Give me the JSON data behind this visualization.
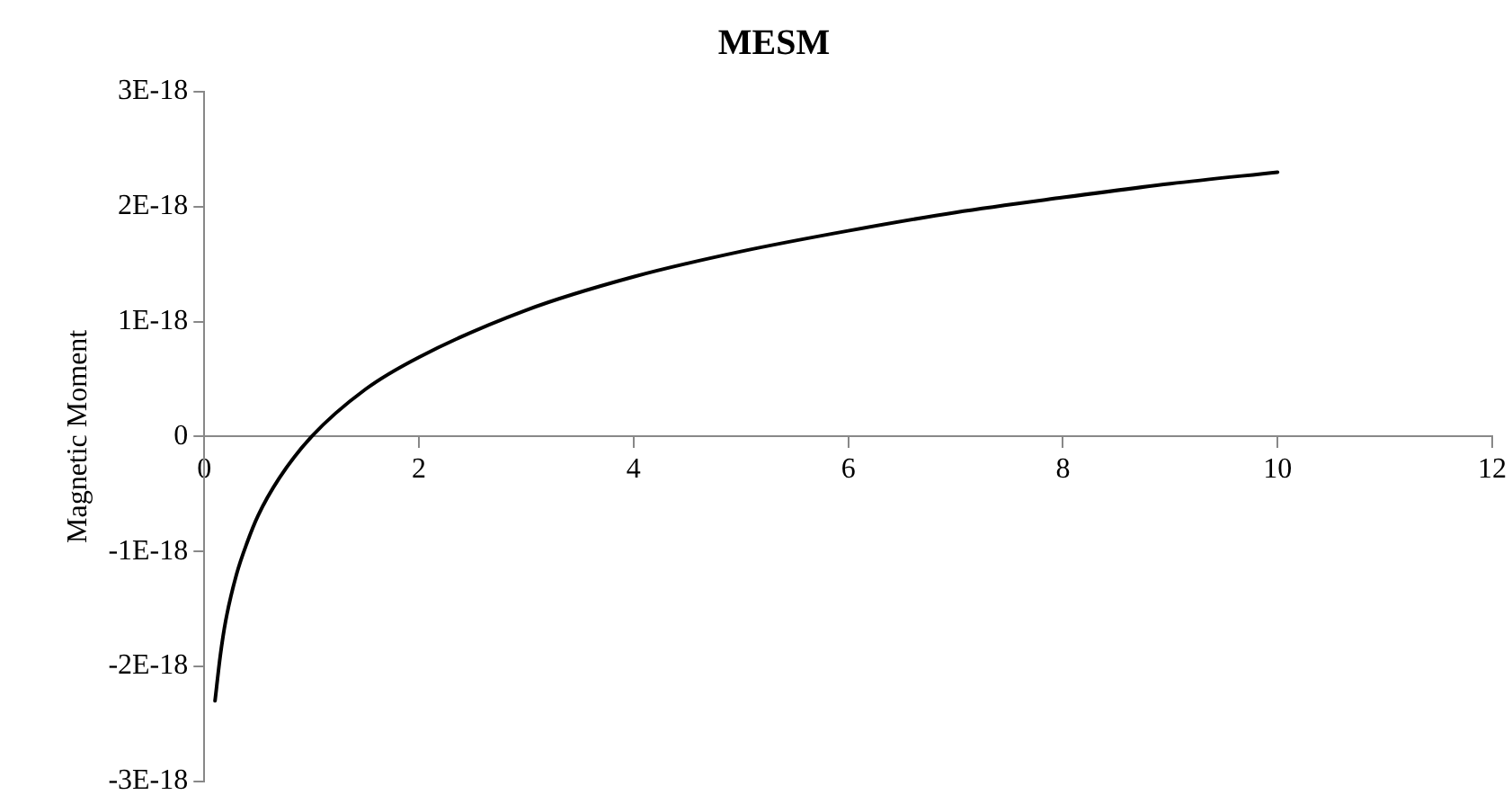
{
  "chart_data": {
    "type": "line",
    "title": "MESM",
    "ylabel": "Magnetic Moment",
    "x": [
      0.1,
      0.15,
      0.2,
      0.3,
      0.4,
      0.5,
      0.7,
      1,
      1.5,
      2,
      3,
      4,
      5,
      6,
      7,
      8,
      9,
      10
    ],
    "series": [
      {
        "color": "#000000",
        "values": [
          -2.3e-18,
          -1.9e-18,
          -1.6e-18,
          -1.2e-18,
          -9.2e-19,
          -6.9e-19,
          -3.6e-19,
          0,
          4.1e-19,
          6.9e-19,
          1.1e-18,
          1.39e-18,
          1.61e-18,
          1.79e-18,
          1.95e-18,
          2.08e-18,
          2.2e-18,
          2.3e-18
        ]
      }
    ],
    "xlim": [
      0,
      12
    ],
    "xticks": [
      0,
      2,
      4,
      6,
      8,
      10,
      12
    ],
    "ylim": [
      -3e-18,
      3e-18
    ],
    "yticks": [
      {
        "value": -3e-18,
        "label": "-3E-18"
      },
      {
        "value": -2e-18,
        "label": "-2E-18"
      },
      {
        "value": -1e-18,
        "label": "-1E-18"
      },
      {
        "value": 0,
        "label": "0"
      },
      {
        "value": 1e-18,
        "label": "1E-18"
      },
      {
        "value": 2e-18,
        "label": "2E-18"
      },
      {
        "value": 3e-18,
        "label": "3E-18"
      }
    ],
    "grid": false,
    "legend": false,
    "marker": "none",
    "line_style": "solid"
  }
}
